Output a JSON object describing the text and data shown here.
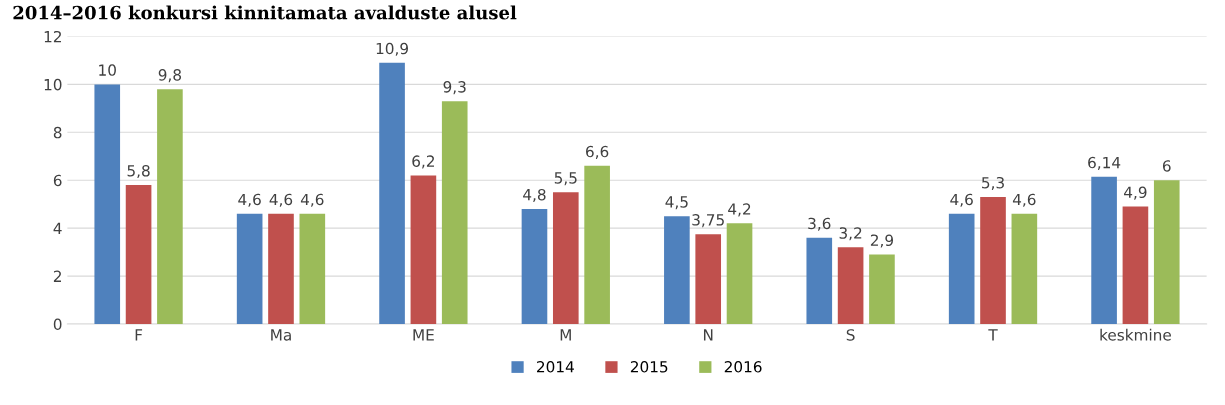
{
  "chart_data": {
    "type": "bar",
    "title": "2014–2016 konkursi kinnitamata avalduste alusel",
    "categories": [
      "F",
      "Ma",
      "ME",
      "M",
      "N",
      "S",
      "T",
      "keskmine"
    ],
    "series": [
      {
        "name": "2014",
        "color": "#4f81bd",
        "values": [
          10,
          4.6,
          10.9,
          4.8,
          4.5,
          3.6,
          4.6,
          6.14
        ],
        "value_labels": [
          "10",
          "4,6",
          "10,9",
          "4,8",
          "4,5",
          "3,6",
          "4,6",
          "6,14"
        ]
      },
      {
        "name": "2015",
        "color": "#c0504d",
        "values": [
          5.8,
          4.6,
          6.2,
          5.5,
          3.75,
          3.2,
          5.3,
          4.9
        ],
        "value_labels": [
          "5,8",
          "4,6",
          "6,2",
          "5,5",
          "3,75",
          "3,2",
          "5,3",
          "4,9"
        ]
      },
      {
        "name": "2016",
        "color": "#9bbb59",
        "values": [
          9.8,
          4.6,
          9.3,
          6.6,
          4.2,
          2.9,
          4.6,
          6
        ],
        "value_labels": [
          "9,8",
          "4,6",
          "9,3",
          "6,6",
          "4,2",
          "2,9",
          "4,6",
          "6"
        ]
      }
    ],
    "ylim": [
      0,
      12
    ],
    "yticks": [
      0,
      2,
      4,
      6,
      8,
      10,
      12
    ],
    "grid": "y",
    "legend": "bottom"
  }
}
